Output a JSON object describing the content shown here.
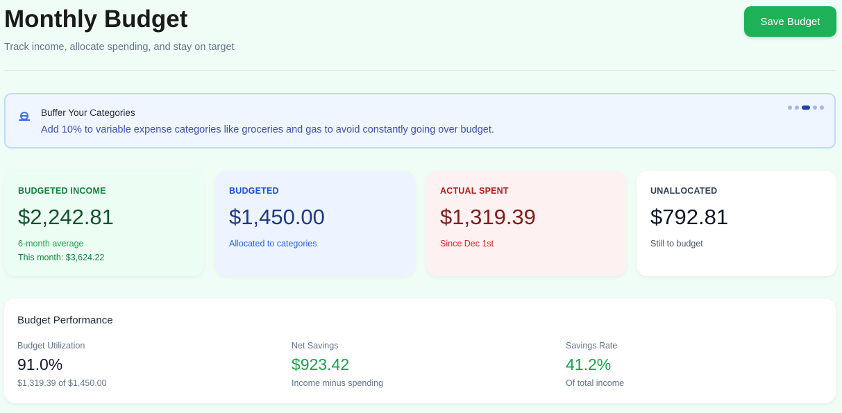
{
  "header": {
    "title": "Monthly Budget",
    "subtitle": "Track income, allocate spending, and stay on target",
    "save_label": "Save Budget"
  },
  "tip": {
    "icon": "piggy-bank-icon",
    "title": "Buffer Your Categories",
    "text": "Add 10% to variable expense categories like groceries and gas to avoid constantly going over budget.",
    "slide_count": 5,
    "active_slide": 3
  },
  "cards": [
    {
      "label": "BUDGETED INCOME",
      "value": "$2,242.81",
      "sub": "6-month average",
      "sub2": "This month: $3,624.22"
    },
    {
      "label": "BUDGETED",
      "value": "$1,450.00",
      "sub": "Allocated to categories"
    },
    {
      "label": "ACTUAL SPENT",
      "value": "$1,319.39",
      "sub": "Since Dec 1st"
    },
    {
      "label": "UNALLOCATED",
      "value": "$792.81",
      "sub": "Still to budget"
    }
  ],
  "performance": {
    "title": "Budget Performance",
    "metrics": [
      {
        "label": "Budget Utilization",
        "value": "91.0%",
        "sub": "$1,319.39 of $1,450.00"
      },
      {
        "label": "Net Savings",
        "value": "$923.42",
        "sub": "Income minus spending"
      },
      {
        "label": "Savings Rate",
        "value": "41.2%",
        "sub": "Of total income"
      }
    ]
  },
  "colors": {
    "accent": "#1fb157",
    "income": "#15803d",
    "budgeted": "#1e3a8a",
    "spent": "#7f1d1d",
    "positive": "#16a34a"
  }
}
